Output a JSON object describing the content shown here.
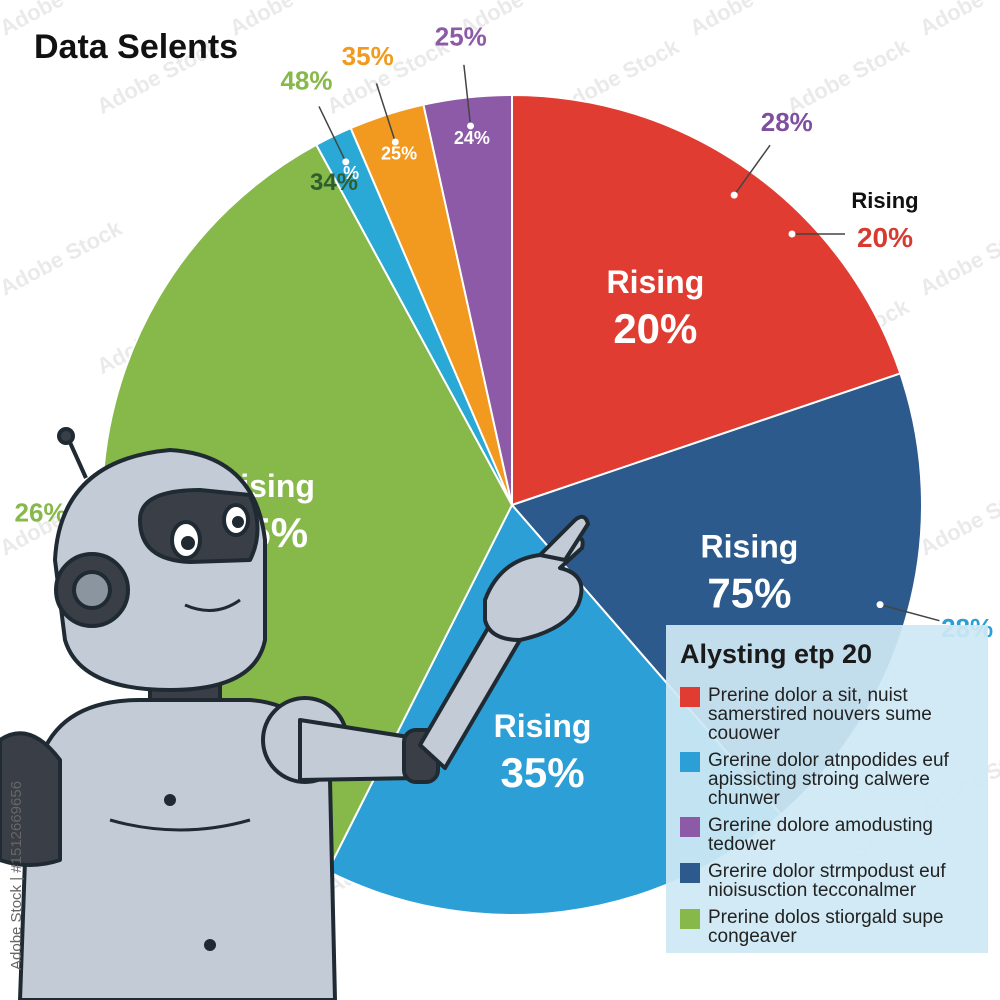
{
  "chart_data": {
    "type": "pie",
    "title": "Data Selents",
    "slices": [
      {
        "inner_label": "Rising",
        "inner_value": "20%",
        "outer_label": "28%",
        "color": "#e03c31",
        "value": 20,
        "outer_color": "#7e4f9e"
      },
      {
        "inner_label": "Rising",
        "inner_value": "75%",
        "outer_label": "28%",
        "color": "#2d5a8c",
        "value": 19,
        "outer_color": "#2a9fd3"
      },
      {
        "inner_label": "Rising",
        "inner_value": "35%",
        "outer_label": "",
        "color": "#2b9fd6",
        "value": 19
      },
      {
        "inner_label": "Rising",
        "inner_value": "45%",
        "outer_label": "26%",
        "color": "#86b84a",
        "value": 35,
        "outer_color": "#86b84a"
      },
      {
        "inner_label": "",
        "inner_value": "%",
        "outer_label": "48%",
        "color": "#2aa8d6",
        "value": 1.5,
        "outer_color": "#86b84a"
      },
      {
        "inner_label": "",
        "inner_value": "25%",
        "outer_label": "35%",
        "color": "#f29a1f",
        "value": 3,
        "outer_color": "#f29a1f"
      },
      {
        "inner_label": "",
        "inner_value": "24%",
        "outer_label": "25%",
        "color": "#8c5aa6",
        "value": 3.5,
        "outer_color": "#8c5aa6"
      }
    ],
    "extra_annotations": [
      {
        "text": "34%",
        "color": "#2e5e2e"
      },
      {
        "text": "Rising",
        "color": "#111111"
      },
      {
        "text": "20%",
        "color": "#d93a2f"
      }
    ],
    "legend": {
      "title": "Alysting etp 20",
      "placement": "bottom-right",
      "items": [
        {
          "text": "Prerine dolor a sit, nuist samerstired nouvers sume couower",
          "color": "#e03c31"
        },
        {
          "text": "Grerine dolor atnpodides euf apissicting stroing calwere chunwer",
          "color": "#2b9fd6"
        },
        {
          "text": "Grerine dolore  amodusting tedower",
          "color": "#8c5aa6"
        },
        {
          "text": "Grerire dolor strmpodust euf nioisusction tecconalmer",
          "color": "#2d5a8c"
        },
        {
          "text": "Prerine dolos stiorgald supe congeaver",
          "color": "#86b84a"
        }
      ]
    }
  },
  "watermark": {
    "text": "Adobe Stock",
    "side_text": "Adobe Stock | #1512669656"
  },
  "colors": {
    "robot_metal": "#b8c3cf",
    "robot_dark": "#3a3f47",
    "outline": "#1f2a33"
  },
  "icons": {
    "mascot": "robot-pointing-icon"
  }
}
